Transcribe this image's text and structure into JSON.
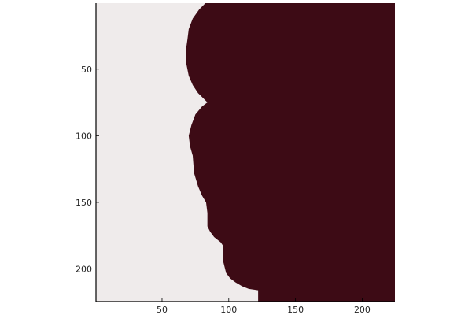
{
  "chart_data": {
    "type": "heatmap",
    "title": "",
    "xlabel": "",
    "ylabel": "",
    "xlim": [
      0.5,
      224.5
    ],
    "ylim": [
      224.5,
      0.5
    ],
    "y_axis_inverted": true,
    "grid": false,
    "legend": "none",
    "x_ticks": [
      50,
      100,
      150,
      200
    ],
    "y_ticks": [
      50,
      100,
      150,
      200
    ],
    "x_tick_labels": [
      "50",
      "100",
      "150",
      "200"
    ],
    "y_tick_labels": [
      "50",
      "100",
      "150",
      "200"
    ],
    "colors": {
      "background_class": "#efebeb",
      "foreground_class": "#3d0b15",
      "axis": "#000000"
    },
    "boundary_note": "Binary mask: left of boundary is light class, right is dark class. Boundary x per row (data units).",
    "boundary": [
      {
        "row": 1,
        "x": 82
      },
      {
        "row": 5,
        "x": 78
      },
      {
        "row": 12,
        "x": 73
      },
      {
        "row": 20,
        "x": 70
      },
      {
        "row": 28,
        "x": 69
      },
      {
        "row": 35,
        "x": 68
      },
      {
        "row": 45,
        "x": 68
      },
      {
        "row": 55,
        "x": 70
      },
      {
        "row": 62,
        "x": 73
      },
      {
        "row": 68,
        "x": 77
      },
      {
        "row": 73,
        "x": 82
      },
      {
        "row": 75,
        "x": 84
      },
      {
        "row": 78,
        "x": 80
      },
      {
        "row": 84,
        "x": 75
      },
      {
        "row": 92,
        "x": 72
      },
      {
        "row": 100,
        "x": 70
      },
      {
        "row": 108,
        "x": 71
      },
      {
        "row": 115,
        "x": 73
      },
      {
        "row": 128,
        "x": 74
      },
      {
        "row": 138,
        "x": 77
      },
      {
        "row": 145,
        "x": 80
      },
      {
        "row": 150,
        "x": 83
      },
      {
        "row": 158,
        "x": 84
      },
      {
        "row": 168,
        "x": 84
      },
      {
        "row": 172,
        "x": 86
      },
      {
        "row": 176,
        "x": 89
      },
      {
        "row": 180,
        "x": 94
      },
      {
        "row": 183,
        "x": 96
      },
      {
        "row": 195,
        "x": 96
      },
      {
        "row": 203,
        "x": 98
      },
      {
        "row": 207,
        "x": 101
      },
      {
        "row": 210,
        "x": 105
      },
      {
        "row": 213,
        "x": 110
      },
      {
        "row": 215,
        "x": 115
      },
      {
        "row": 216,
        "x": 122
      },
      {
        "row": 216.5,
        "x": 122
      },
      {
        "row": 217,
        "x": 122
      },
      {
        "row": 224,
        "x": 122
      }
    ]
  }
}
